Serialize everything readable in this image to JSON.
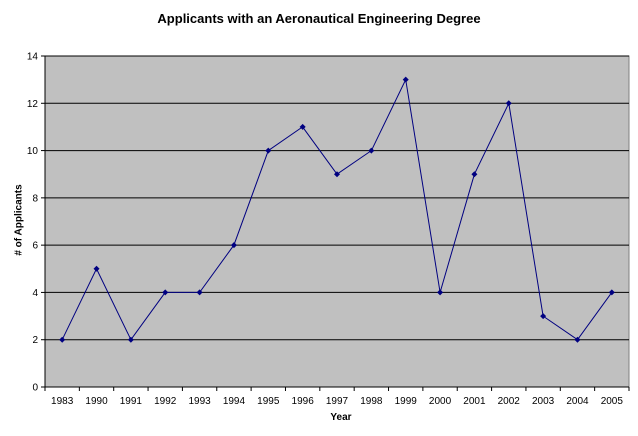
{
  "chart_data": {
    "type": "line",
    "title": "Applicants with an Aeronautical Engineering Degree",
    "xlabel": "Year",
    "ylabel": "# of Applicants",
    "categories": [
      "1983",
      "1990",
      "1991",
      "1992",
      "1993",
      "1994",
      "1995",
      "1996",
      "1997",
      "1998",
      "1999",
      "2000",
      "2001",
      "2002",
      "2003",
      "2004",
      "2005"
    ],
    "series": [
      {
        "values": [
          2,
          5,
          2,
          4,
          4,
          6,
          10,
          11,
          9,
          10,
          13,
          4,
          9,
          12,
          3,
          2,
          4
        ]
      }
    ],
    "ylim": [
      0,
      14
    ],
    "yticks": [
      0,
      2,
      4,
      6,
      8,
      10,
      12,
      14
    ],
    "grid": true,
    "legend": "none",
    "colors": {
      "plot_background": "#c0c0c0",
      "line": "#000080",
      "gridline": "#000000"
    }
  }
}
